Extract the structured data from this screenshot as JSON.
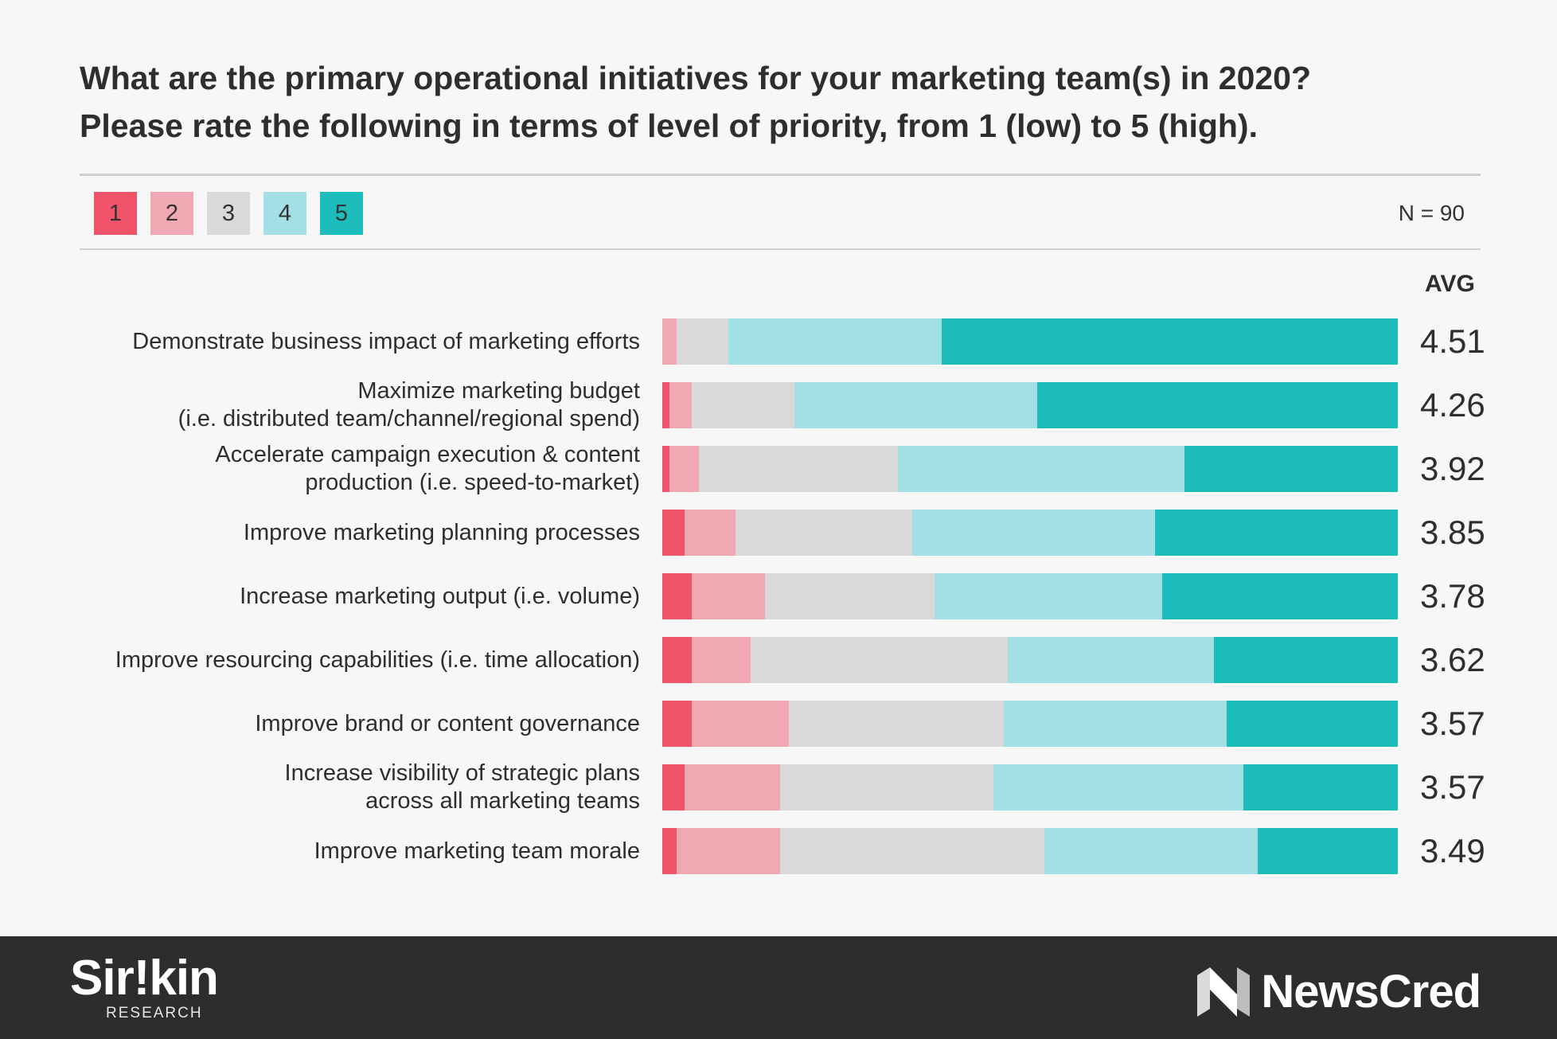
{
  "title_lines": [
    "What are the primary operational initiatives for your marketing team(s) in 2020?",
    "Please rate the following in terms of level of priority, from 1 (low) to 5 (high)."
  ],
  "legend": [
    {
      "label": "1",
      "color": "#f0546a"
    },
    {
      "label": "2",
      "color": "#f0a8b2"
    },
    {
      "label": "3",
      "color": "#d9d9d9"
    },
    {
      "label": "4",
      "color": "#a3e0e6"
    },
    {
      "label": "5",
      "color": "#1bbcba"
    }
  ],
  "n_label": "N = 90",
  "avg_header": "AVG",
  "chart_data": {
    "type": "bar",
    "orientation": "horizontal",
    "stacked": true,
    "normalized_to_percent": true,
    "categories": [
      [
        "Demonstrate business impact of marketing efforts"
      ],
      [
        "Maximize marketing budget",
        "(i.e. distributed team/channel/regional spend)"
      ],
      [
        "Accelerate campaign execution & content",
        "production (i.e. speed-to-market)"
      ],
      [
        "Improve marketing planning processes"
      ],
      [
        "Increase marketing output (i.e. volume)"
      ],
      [
        "Improve resourcing capabilities (i.e. time allocation)"
      ],
      [
        "Improve brand or content governance"
      ],
      [
        "Increase visibility of strategic plans",
        "across all marketing teams"
      ],
      [
        "Improve marketing team morale"
      ]
    ],
    "series": [
      {
        "name": "1",
        "color": "#f0546a",
        "values": [
          0,
          1,
          1,
          3,
          4,
          4,
          4,
          3,
          2
        ]
      },
      {
        "name": "2",
        "color": "#f0a8b2",
        "values": [
          2,
          3,
          4,
          7,
          10,
          8,
          13,
          13,
          14
        ]
      },
      {
        "name": "3",
        "color": "#d9d9d9",
        "values": [
          7,
          14,
          27,
          24,
          23,
          35,
          29,
          29,
          36
        ]
      },
      {
        "name": "4",
        "color": "#a3e0e6",
        "values": [
          29,
          33,
          39,
          33,
          31,
          28,
          30,
          34,
          29
        ]
      },
      {
        "name": "5",
        "color": "#1bbcba",
        "values": [
          62,
          49,
          29,
          33,
          32,
          25,
          23,
          21,
          19
        ]
      }
    ],
    "averages": [
      "4.51",
      "4.26",
      "3.92",
      "3.85",
      "3.78",
      "3.62",
      "3.57",
      "3.57",
      "3.49"
    ],
    "xlim": [
      0,
      100
    ],
    "legend_position": "top-left"
  },
  "footer": {
    "left_logo_word": "Sir!kin",
    "left_logo_sub": "RESEARCH",
    "right_logo_word": "NewsCred"
  }
}
